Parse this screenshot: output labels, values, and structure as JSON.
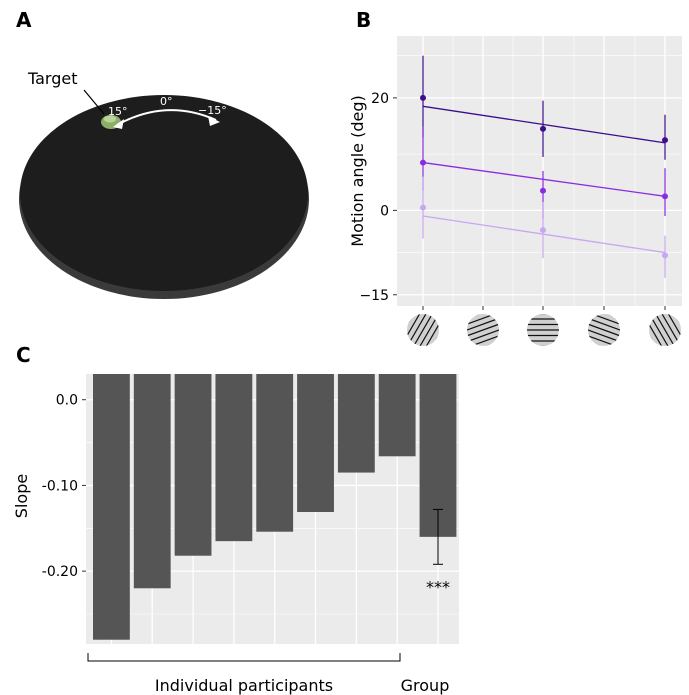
{
  "panels": {
    "a_letter": "A",
    "b_letter": "B",
    "c_letter": "C"
  },
  "panel_a": {
    "target_label": "Target",
    "angle_left": "15°",
    "angle_center": "0°",
    "angle_right": "−15°",
    "colors": {
      "disc": "#1d1d1d",
      "disc_edge": "#3a3a3a",
      "target": "#8fae6a"
    }
  },
  "colors": {
    "panel_bg": "#ebebeb",
    "grid": "#ffffff",
    "bar": "#555555",
    "series": [
      "#3d0d8c",
      "#8a2be2",
      "#c9a6f2"
    ]
  },
  "chart_data": [
    {
      "type": "line",
      "panel": "B",
      "ylabel": "Motion angle (deg)",
      "xlabel": "",
      "x": [
        1,
        2,
        3,
        4,
        5
      ],
      "x_tick_icons": [
        "stripes-steep-left",
        "stripes-shallow-left",
        "stripes-horizontal",
        "stripes-shallow-right",
        "stripes-steep-right"
      ],
      "ylim": [
        -17,
        31
      ],
      "yticks": [
        20,
        0,
        -15
      ],
      "ytick_labels": [
        "20",
        "0",
        "−15"
      ],
      "grid": true,
      "series": [
        {
          "color": "#3d0d8c",
          "points": [
            {
              "x": 1,
              "y": 20.0,
              "err_low": 13.0,
              "err_high": 27.5
            },
            {
              "x": 3,
              "y": 14.5,
              "err_low": 9.5,
              "err_high": 19.5
            },
            {
              "x": 5,
              "y": 12.5,
              "err_low": 9.0,
              "err_high": 17.0
            }
          ],
          "fit": [
            [
              1,
              18.5
            ],
            [
              5,
              12.0
            ]
          ]
        },
        {
          "color": "#8a2be2",
          "points": [
            {
              "x": 1,
              "y": 8.5,
              "err_low": 3.5,
              "err_high": 15.0
            },
            {
              "x": 3,
              "y": 3.5,
              "err_low": -1.5,
              "err_high": 7.0
            },
            {
              "x": 5,
              "y": 2.5,
              "err_low": -1.0,
              "err_high": 7.5
            }
          ],
          "fit": [
            [
              1,
              8.5
            ],
            [
              5,
              2.5
            ]
          ]
        },
        {
          "color": "#c9a6f2",
          "points": [
            {
              "x": 1,
              "y": 0.5,
              "err_low": -5.0,
              "err_high": 6.0
            },
            {
              "x": 3,
              "y": -3.5,
              "err_low": -8.5,
              "err_high": 1.5
            },
            {
              "x": 5,
              "y": -8.0,
              "err_low": -12.0,
              "err_high": -4.5
            }
          ],
          "fit": [
            [
              1,
              -1.0
            ],
            [
              5,
              -7.5
            ]
          ]
        }
      ]
    },
    {
      "type": "bar",
      "panel": "C",
      "ylabel": "Slope",
      "xlabel": "",
      "ylim": [
        -0.285,
        0.03
      ],
      "yticks": [
        0.0,
        -0.1,
        -0.2
      ],
      "ytick_labels": [
        "0.0",
        "-0.10",
        "-0.20"
      ],
      "grid": true,
      "values": [
        -0.28,
        -0.22,
        -0.182,
        -0.165,
        -0.154,
        -0.131,
        -0.085,
        -0.066,
        -0.16
      ],
      "group_errorbar": {
        "low": -0.192,
        "high": -0.128
      },
      "group_annotation": "***",
      "group_labels": {
        "participants": "Individual participants",
        "group": "Group"
      }
    }
  ]
}
